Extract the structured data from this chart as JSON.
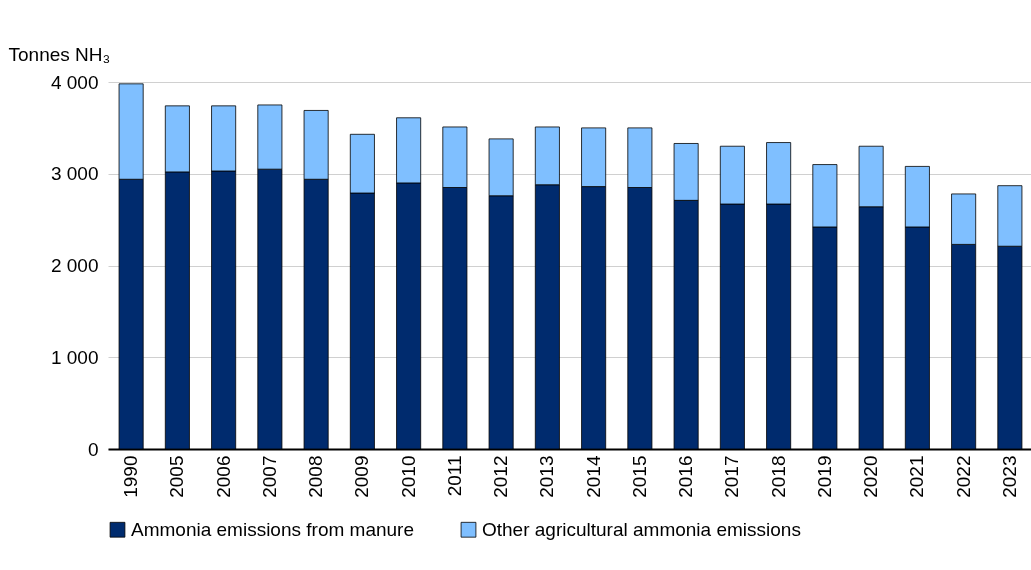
{
  "chart_data": {
    "type": "bar",
    "stacked": true,
    "ylabel": "Tonnes NH₃",
    "categories": [
      "1990",
      "2005",
      "2006",
      "2007",
      "2008",
      "2009",
      "2010",
      "2011",
      "2012",
      "2013",
      "2014",
      "2015",
      "2016",
      "2017",
      "2018",
      "2019",
      "2020",
      "2021",
      "2022",
      "2023"
    ],
    "series": [
      {
        "name": "Ammonia emissions from manure",
        "color": "#002b6e",
        "values": [
          2940,
          3020,
          3030,
          3050,
          2940,
          2790,
          2900,
          2850,
          2760,
          2880,
          2860,
          2850,
          2710,
          2670,
          2670,
          2420,
          2640,
          2420,
          2230,
          2210
        ]
      },
      {
        "name": "Other agricultural ammonia emissions",
        "color": "#7fbfff",
        "values": [
          1040,
          720,
          710,
          700,
          750,
          640,
          710,
          660,
          620,
          630,
          640,
          650,
          620,
          630,
          670,
          680,
          660,
          660,
          550,
          660
        ]
      }
    ],
    "ylim": [
      0,
      4000
    ],
    "yticks": [
      0,
      {
        "value": 1000,
        "label": "1 000"
      },
      {
        "value": 2000,
        "label": "2 000"
      },
      {
        "value": 3000,
        "label": "3 000"
      },
      {
        "value": 4000,
        "label": "4 000"
      }
    ],
    "grid": "y",
    "legend": "bottom"
  }
}
